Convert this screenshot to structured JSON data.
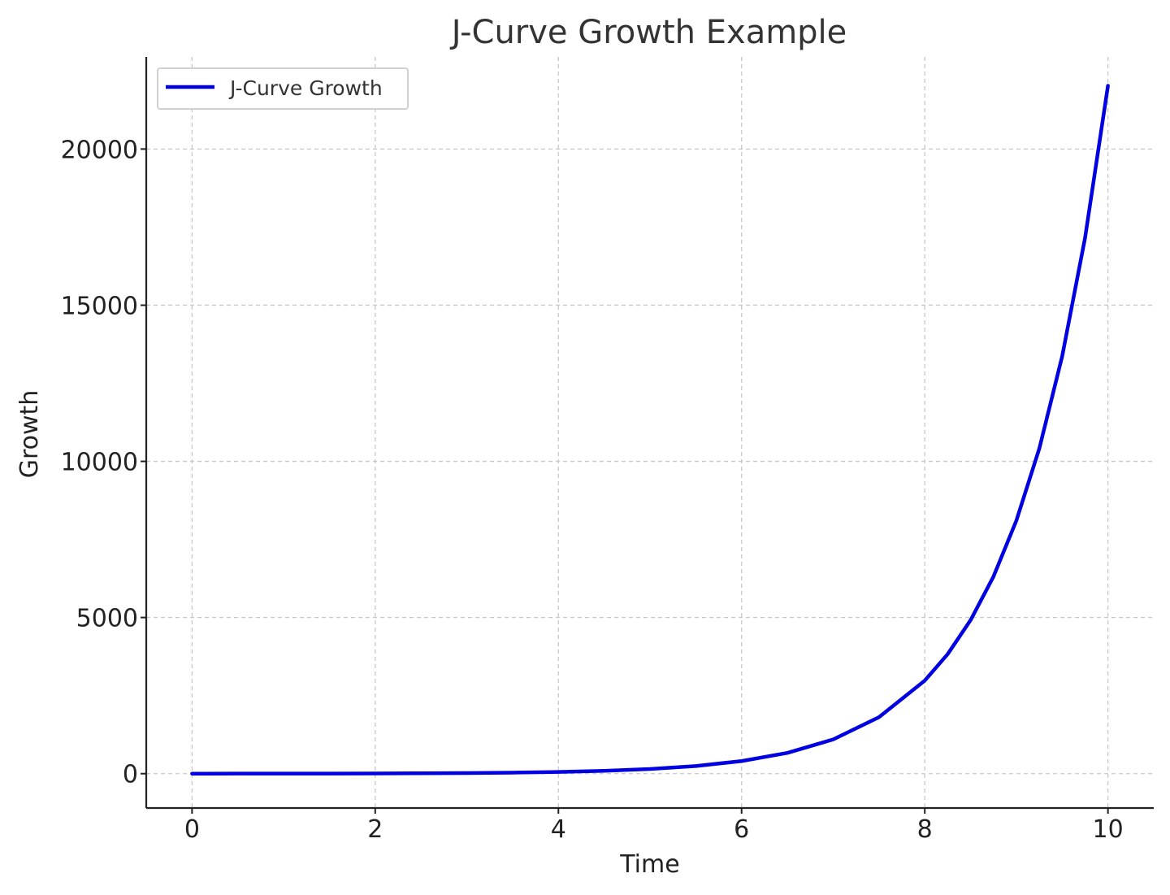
{
  "chart_data": {
    "type": "line",
    "title": "J-Curve Growth Example",
    "xlabel": "Time",
    "ylabel": "Growth",
    "xlim": [
      -0.5,
      10.5
    ],
    "ylim": [
      -1100,
      22950
    ],
    "x_ticks": [
      0,
      2,
      4,
      6,
      8,
      10
    ],
    "y_ticks": [
      0,
      5000,
      10000,
      15000,
      20000
    ],
    "grid": true,
    "legend_position": "top-left",
    "series": [
      {
        "name": "J-Curve Growth",
        "color": "#0000e0",
        "x": [
          0,
          0.5,
          1,
          1.5,
          2,
          2.5,
          3,
          3.5,
          4,
          4.5,
          5,
          5.5,
          6,
          6.5,
          7,
          7.5,
          8,
          8.25,
          8.5,
          8.75,
          9,
          9.25,
          9.5,
          9.75,
          10
        ],
        "y": [
          1,
          1.6,
          2.7,
          4.5,
          7.4,
          12.2,
          20.1,
          33.1,
          54.6,
          90,
          148.4,
          244.7,
          403.4,
          665.1,
          1096.6,
          1808,
          2981,
          3827.6,
          4914.8,
          6310.7,
          8103.1,
          10404.6,
          13359.7,
          17154.2,
          22026.5
        ]
      }
    ]
  }
}
